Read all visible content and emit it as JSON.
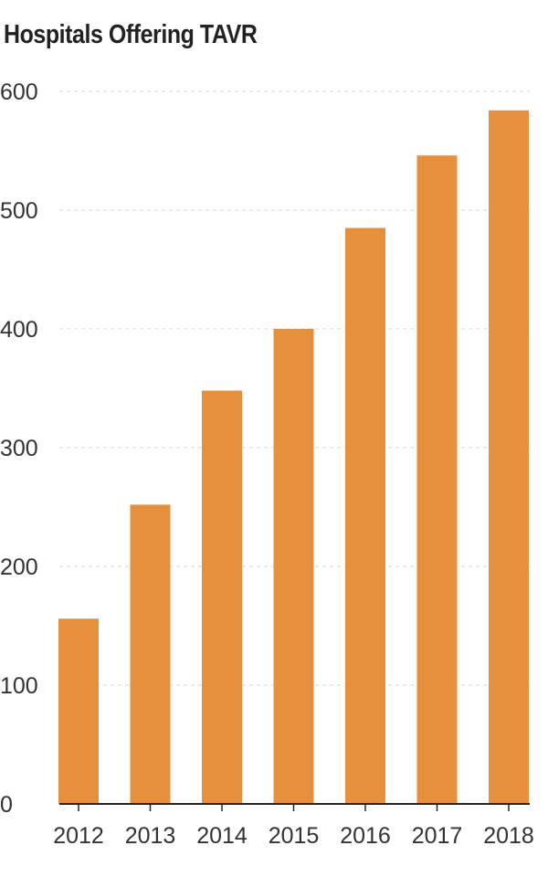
{
  "chart_data": {
    "type": "bar",
    "title": "Hospitals Offering TAVR",
    "xlabel": "",
    "ylabel": "",
    "categories": [
      "2012",
      "2013",
      "2014",
      "2015",
      "2016",
      "2017",
      "2018"
    ],
    "values": [
      156,
      252,
      348,
      400,
      485,
      546,
      584
    ],
    "ylim": [
      0,
      600
    ],
    "yticks": [
      0,
      100,
      200,
      300,
      400,
      500,
      600
    ],
    "grid": true,
    "bar_color": "#e68f3c",
    "grid_color": "#d9d9d9",
    "axis_color": "#222222"
  }
}
